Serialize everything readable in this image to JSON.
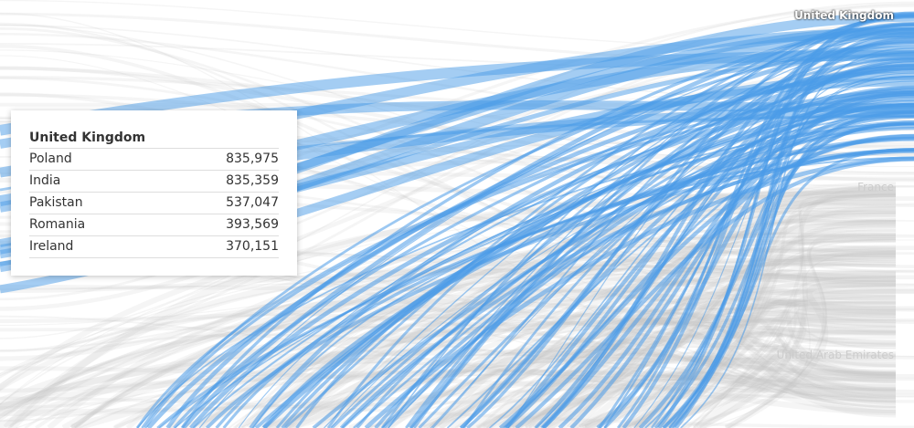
{
  "labels": {
    "selected": "United Kingdom",
    "others": [
      "France",
      "United Arab Emirates"
    ]
  },
  "tooltip": {
    "title": "United Kingdom",
    "rows": [
      [
        "Poland",
        "835,975"
      ],
      [
        "India",
        "835,359"
      ],
      [
        "Pakistan",
        "537,047"
      ],
      [
        "Romania",
        "393,569"
      ],
      [
        "Ireland",
        "370,151"
      ]
    ]
  }
}
